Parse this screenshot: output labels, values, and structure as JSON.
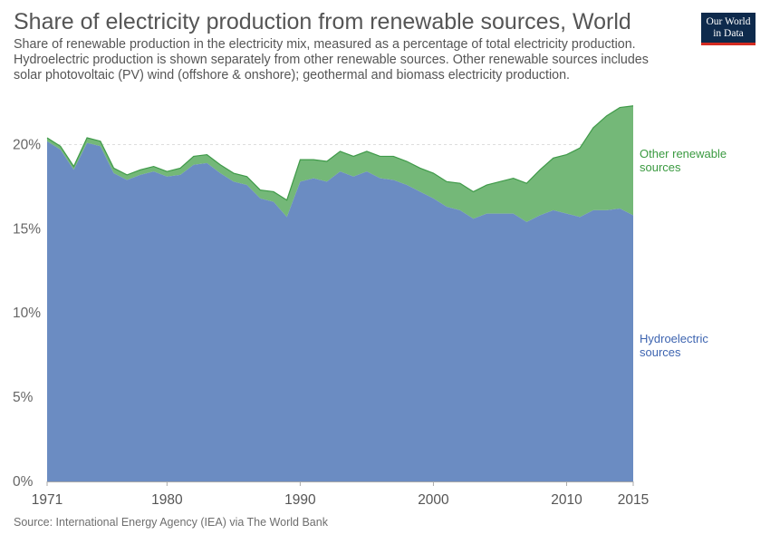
{
  "header": {
    "title": "Share of electricity production from renewable sources, World",
    "subtitle": "Share of renewable production in the electricity mix, measured as a percentage of total electricity production. Hydroelectric production is shown separately from other renewable sources. Other renewable sources includes solar photovoltaic (PV) wind (offshore & onshore); geothermal and biomass electricity production.",
    "logo_line1": "Our World",
    "logo_line2": "in Data"
  },
  "footer": {
    "source": "Source: International Energy Agency (IEA) via The World Bank"
  },
  "colors": {
    "hydro": "#6b8cc2",
    "other": "#74b878",
    "other_line": "#3f9a49",
    "hydro_label": "#3d64b0",
    "other_label": "#3a9a40",
    "grid": "#dddddd"
  },
  "chart_data": {
    "type": "area",
    "stacked": true,
    "x": [
      1971,
      1972,
      1973,
      1974,
      1975,
      1976,
      1977,
      1978,
      1979,
      1980,
      1981,
      1982,
      1983,
      1984,
      1985,
      1986,
      1987,
      1988,
      1989,
      1990,
      1991,
      1992,
      1993,
      1994,
      1995,
      1996,
      1997,
      1998,
      1999,
      2000,
      2001,
      2002,
      2003,
      2004,
      2005,
      2006,
      2007,
      2008,
      2009,
      2010,
      2011,
      2012,
      2013,
      2014,
      2015
    ],
    "series": [
      {
        "name": "Hydroelectric sources",
        "values": [
          20.2,
          19.7,
          18.5,
          20.1,
          19.9,
          18.3,
          17.9,
          18.2,
          18.4,
          18.1,
          18.2,
          18.8,
          18.9,
          18.3,
          17.8,
          17.6,
          16.8,
          16.6,
          15.7,
          17.8,
          18.0,
          17.8,
          18.4,
          18.1,
          18.4,
          18.0,
          17.9,
          17.6,
          17.2,
          16.8,
          16.3,
          16.1,
          15.6,
          15.9,
          15.9,
          15.9,
          15.4,
          15.8,
          16.1,
          15.9,
          15.7,
          16.1,
          16.1,
          16.2,
          15.8
        ]
      },
      {
        "name": "Other renewable sources",
        "values": [
          0.2,
          0.2,
          0.2,
          0.3,
          0.3,
          0.3,
          0.3,
          0.3,
          0.3,
          0.3,
          0.4,
          0.5,
          0.5,
          0.5,
          0.5,
          0.5,
          0.5,
          0.6,
          1.0,
          1.3,
          1.1,
          1.2,
          1.2,
          1.2,
          1.2,
          1.3,
          1.4,
          1.4,
          1.4,
          1.5,
          1.5,
          1.6,
          1.6,
          1.7,
          1.9,
          2.1,
          2.3,
          2.7,
          3.1,
          3.5,
          4.1,
          4.9,
          5.6,
          6.0,
          6.5
        ]
      }
    ],
    "y_ticks": [
      0,
      5,
      10,
      15,
      20
    ],
    "y_tick_labels": [
      "0%",
      "5%",
      "10%",
      "15%",
      "20%"
    ],
    "x_ticks": [
      1971,
      1980,
      1990,
      2000,
      2010,
      2015
    ],
    "x_tick_labels": [
      "1971",
      "1980",
      "1990",
      "2000",
      "2010",
      "2015"
    ],
    "ylim": [
      0,
      22.5
    ],
    "xlim": [
      1971,
      2015
    ],
    "grid": "horizontal dashed",
    "legend": "right, inline labels",
    "series_labels": [
      {
        "line1": "Other renewable",
        "line2": "sources"
      },
      {
        "line1": "Hydroelectric",
        "line2": "sources"
      }
    ]
  }
}
